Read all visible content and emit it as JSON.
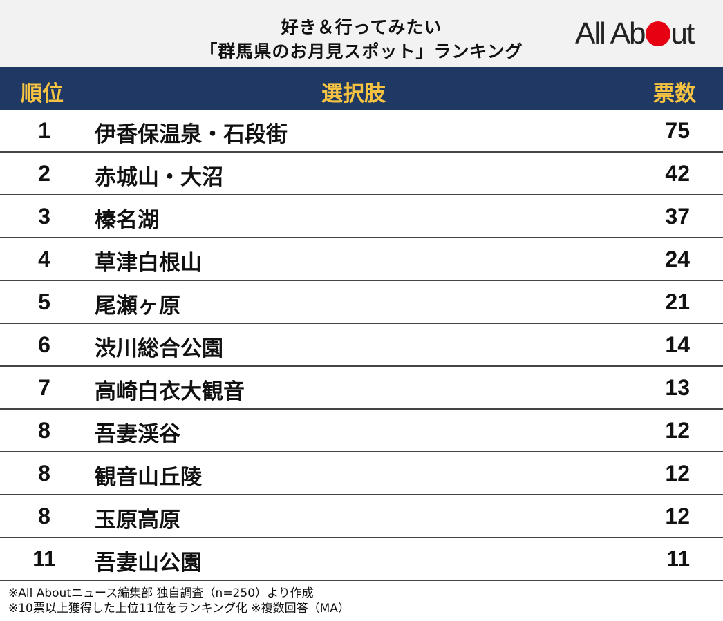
{
  "title": {
    "line1": "好き＆行ってみたい",
    "line2": "「群馬県のお月見スポット」ランキング"
  },
  "logo": {
    "text_before": "All Ab",
    "text_after": "ut",
    "dot_color": "#e60012"
  },
  "header": {
    "rank": "順位",
    "choice": "選択肢",
    "votes": "票数"
  },
  "colors": {
    "header_bg": "#1f3864",
    "header_text": "#f5c242"
  },
  "rows": [
    {
      "rank": "1",
      "name": "伊香保温泉・石段街",
      "votes": "75"
    },
    {
      "rank": "2",
      "name": "赤城山・大沼",
      "votes": "42"
    },
    {
      "rank": "3",
      "name": "榛名湖",
      "votes": "37"
    },
    {
      "rank": "4",
      "name": "草津白根山",
      "votes": "24"
    },
    {
      "rank": "5",
      "name": "尾瀬ヶ原",
      "votes": "21"
    },
    {
      "rank": "6",
      "name": "渋川総合公園",
      "votes": "14"
    },
    {
      "rank": "7",
      "name": "高崎白衣大観音",
      "votes": "13"
    },
    {
      "rank": "8",
      "name": "吾妻渓谷",
      "votes": "12"
    },
    {
      "rank": "8",
      "name": "観音山丘陵",
      "votes": "12"
    },
    {
      "rank": "8",
      "name": "玉原高原",
      "votes": "12"
    },
    {
      "rank": "11",
      "name": "吾妻山公園",
      "votes": "11"
    }
  ],
  "notes": {
    "line1": "※All Aboutニュース編集部 独自調査（n=250）より作成",
    "line2": "※10票以上獲得した上位11位をランキング化 ※複数回答（MA）"
  }
}
